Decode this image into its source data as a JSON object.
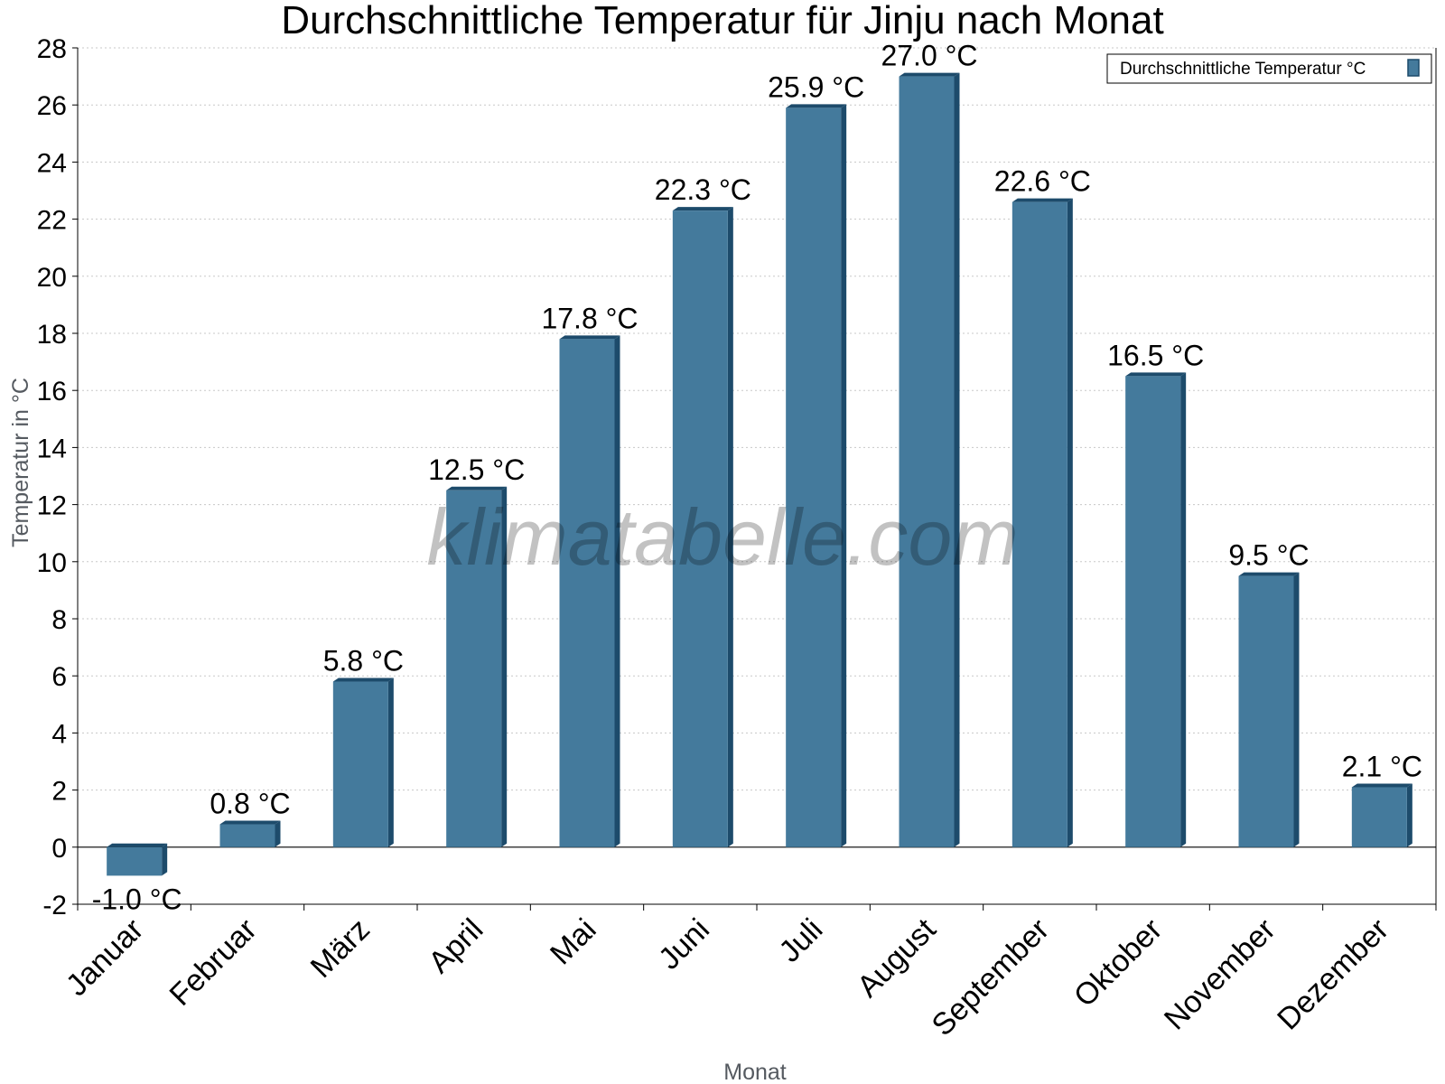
{
  "chart_data": {
    "type": "bar",
    "title": "Durchschnittliche Temperatur für Jinju nach Monat",
    "xlabel": "Monat",
    "ylabel": "Temperatur in °C",
    "categories": [
      "Januar",
      "Februar",
      "März",
      "April",
      "Mai",
      "Juni",
      "Juli",
      "August",
      "September",
      "Oktober",
      "November",
      "Dezember"
    ],
    "series": [
      {
        "name": "Durchschnittliche Temperatur °C",
        "values": [
          -1.0,
          0.8,
          5.8,
          12.5,
          17.8,
          22.3,
          25.9,
          27.0,
          22.6,
          16.5,
          9.5,
          2.1
        ],
        "labels": [
          "-1.0 °C",
          "0.8 °C",
          "5.8 °C",
          "12.5 °C",
          "17.8 °C",
          "22.3 °C",
          "25.9 °C",
          "27.0 °C",
          "22.6 °C",
          "16.5 °C",
          "9.5 °C",
          "2.1 °C"
        ]
      }
    ],
    "ylim": [
      -2,
      28
    ],
    "yticks": [
      -2,
      0,
      2,
      4,
      6,
      8,
      10,
      12,
      14,
      16,
      18,
      20,
      22,
      24,
      26,
      28
    ],
    "grid": true,
    "legend_position": "top-right",
    "colors": {
      "bar": "#447a9c",
      "bar_side": "#1d4b6b",
      "grid": "#c8c8c8"
    }
  },
  "watermark": "klimatabelle.com"
}
